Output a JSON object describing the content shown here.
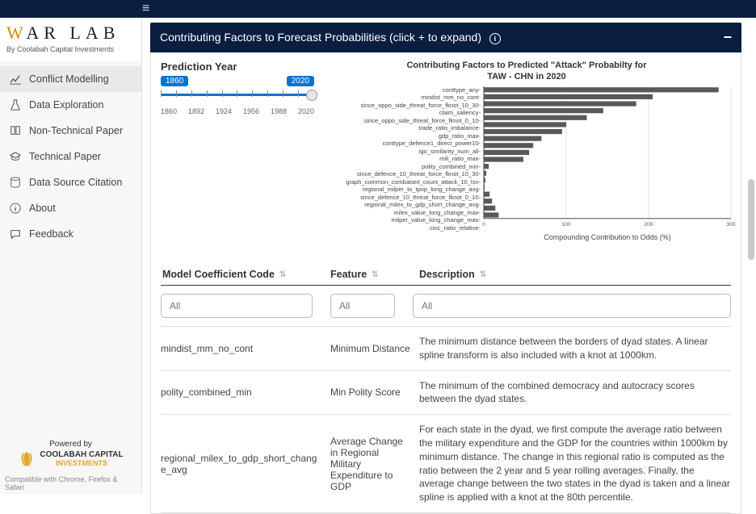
{
  "brand": {
    "title_accent": "W",
    "title_rest": "AR LAB",
    "subtitle": "By Coolabah Capital Investments"
  },
  "sidebar": {
    "items": [
      {
        "icon": "chart",
        "label": "Conflict Modelling",
        "active": true
      },
      {
        "icon": "flask",
        "label": "Data Exploration",
        "active": false
      },
      {
        "icon": "book",
        "label": "Non-Technical Paper",
        "active": false
      },
      {
        "icon": "grad",
        "label": "Technical Paper",
        "active": false
      },
      {
        "icon": "db",
        "label": "Data Source Citation",
        "active": false
      },
      {
        "icon": "info",
        "label": "About",
        "active": false
      },
      {
        "icon": "chat",
        "label": "Feedback",
        "active": false
      }
    ]
  },
  "footer": {
    "powered": "Powered by",
    "company_top": "COOLABAH CAPITAL",
    "company_bottom": "INVESTMENTS",
    "compat": "Compatible with Chrome, Firefox & Safari"
  },
  "panel": {
    "title": "Contributing Factors to Forecast Probabilities (click + to expand)"
  },
  "slider": {
    "label": "Prediction Year",
    "min_badge": "1860",
    "max_badge": "2020",
    "ticks": [
      "1860",
      "1892",
      "1924",
      "1956",
      "1988",
      "2020"
    ]
  },
  "chart": {
    "title_line1": "Contributing Factors to Predicted \"Attack\" Probabilty for",
    "title_line2": "TAW - CHN in 2020",
    "x_label": "Compounding Contribution to Odds (%)",
    "x_ticks": [
      0,
      100,
      200,
      300
    ],
    "x_max": 300,
    "bar_color": "#595959",
    "grid_color": "#e4e4e4",
    "axis_color": "#333",
    "series": [
      {
        "label": "conttype_any",
        "value": 285
      },
      {
        "label": "mindist_mm_no_cont",
        "value": 205
      },
      {
        "label": "since_oppo_side_threat_force_fknot_10_30",
        "value": 185
      },
      {
        "label": "claim_saliency",
        "value": 145
      },
      {
        "label": "since_oppo_side_threat_force_fknot_0_10",
        "value": 125
      },
      {
        "label": "trade_ratio_imbalance",
        "value": 100
      },
      {
        "label": "gdp_ratio_max",
        "value": 95
      },
      {
        "label": "conttype_defence1_direct_power10",
        "value": 70
      },
      {
        "label": "igo_similarity_num_all",
        "value": 60
      },
      {
        "label": "mili_ratio_max",
        "value": 55
      },
      {
        "label": "polity_combined_min",
        "value": 48
      },
      {
        "label": "since_defence_10_threat_force_fknot_10_30",
        "value": 6
      },
      {
        "label": "graph_common_combatant_count_attack_10_lsn",
        "value": 3
      },
      {
        "label": "regional_milper_to_tpop_long_change_avg",
        "value": 2
      },
      {
        "label": "since_defence_10_threat_force_fknot_0_10",
        "value": 1
      },
      {
        "label": "regional_milex_to_gdp_short_change_avg",
        "value": 7
      },
      {
        "label": "milex_value_long_change_max",
        "value": 10
      },
      {
        "label": "milper_value_long_change_max",
        "value": 14
      },
      {
        "label": "cinc_ratio_relative",
        "value": 18
      }
    ]
  },
  "table": {
    "headers": {
      "code": "Model Coefficient Code",
      "feature": "Feature",
      "desc": "Description"
    },
    "filter_placeholder": "All",
    "rows": [
      {
        "code": "mindist_mm_no_cont",
        "feature": "Minimum Distance",
        "desc": "The minimum distance between the borders of dyad states. A linear spline transform is also included with a knot at 1000km."
      },
      {
        "code": "polity_combined_min",
        "feature": "Min Polity Score",
        "desc": "The minimum of the combined democracy and autocracy scores between the dyad states."
      },
      {
        "code": "regional_milex_to_gdp_short_change_avg",
        "feature": "Average Change in Regional Military Expenditure to GDP",
        "desc": "For each state in the dyad, we first compute the average ratio between the military expenditure and the GDP for the countries within 1000km by minimum distance. The change in this regional ratio is computed as the ratio between the 2 year and 5 year rolling averages. Finally, the average change between the two states in the dyad is taken and a linear spline is applied with a knot at the 80th percentile."
      }
    ]
  }
}
